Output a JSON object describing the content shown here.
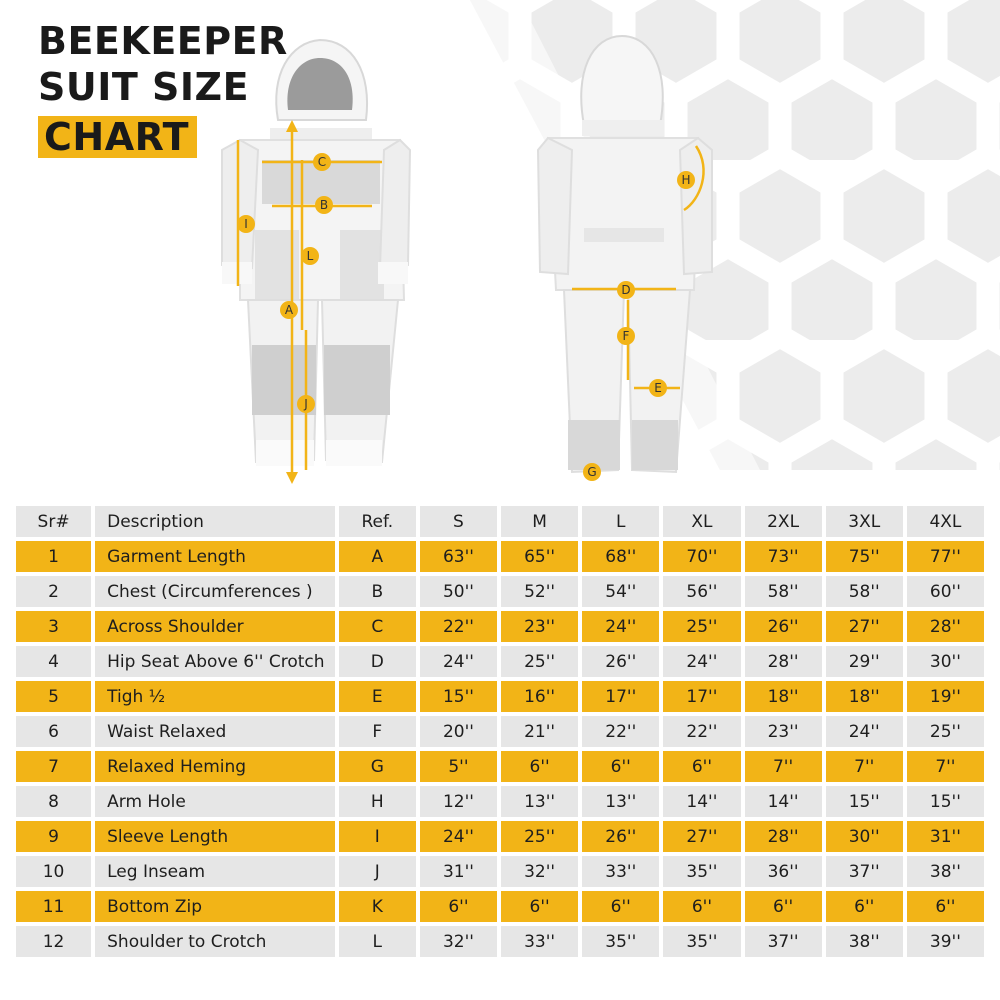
{
  "title": {
    "line1": "BEEKEEPER",
    "line2": "SUIT SIZE",
    "line3": "CHART"
  },
  "colors": {
    "accent": "#f2b417",
    "row_gray": "#e6e6e6",
    "text": "#1e1e1e"
  },
  "diagram_labels": {
    "front": [
      "C",
      "B",
      "I",
      "L",
      "A",
      "J"
    ],
    "back": [
      "H",
      "D",
      "F",
      "E",
      "G"
    ]
  },
  "table": {
    "headers": [
      "Sr#",
      "Description",
      "Ref.",
      "S",
      "M",
      "L",
      "XL",
      "2XL",
      "3XL",
      "4XL"
    ],
    "rows": [
      [
        "1",
        "Garment Length",
        "A",
        "63''",
        "65''",
        "68''",
        "70''",
        "73''",
        "75''",
        "77''"
      ],
      [
        "2",
        "Chest (Circumferences )",
        "B",
        "50''",
        "52''",
        "54''",
        "56''",
        "58''",
        "58''",
        "60''"
      ],
      [
        "3",
        "Across Shoulder",
        "C",
        "22''",
        "23''",
        "24''",
        "25''",
        "26''",
        "27''",
        "28''"
      ],
      [
        "4",
        "Hip Seat Above 6'' Crotch",
        "D",
        "24''",
        "25''",
        "26''",
        "24''",
        "28''",
        "29''",
        "30''"
      ],
      [
        "5",
        "Tigh ½",
        "E",
        "15''",
        "16''",
        "17''",
        "17''",
        "18''",
        "18''",
        "19''"
      ],
      [
        "6",
        "Waist Relaxed",
        "F",
        "20''",
        "21''",
        "22''",
        "22''",
        "23''",
        "24''",
        "25''"
      ],
      [
        "7",
        "Relaxed Heming",
        "G",
        "5''",
        "6''",
        "6''",
        "6''",
        "7''",
        "7''",
        "7''"
      ],
      [
        "8",
        "Arm Hole",
        "H",
        "12''",
        "13''",
        "13''",
        "14''",
        "14''",
        "15''",
        "15''"
      ],
      [
        "9",
        "Sleeve Length",
        "I",
        "24''",
        "25''",
        "26''",
        "27''",
        "28''",
        "30''",
        "31''"
      ],
      [
        "10",
        "Leg Inseam",
        "J",
        "31''",
        "32''",
        "33''",
        "35''",
        "36''",
        "37''",
        "38''"
      ],
      [
        "11",
        "Bottom Zip",
        "K",
        "6''",
        "6''",
        "6''",
        "6''",
        "6''",
        "6''",
        "6''"
      ],
      [
        "12",
        "Shoulder to Crotch",
        "L",
        "32''",
        "33''",
        "35''",
        "35''",
        "37''",
        "38''",
        "39''"
      ]
    ]
  }
}
